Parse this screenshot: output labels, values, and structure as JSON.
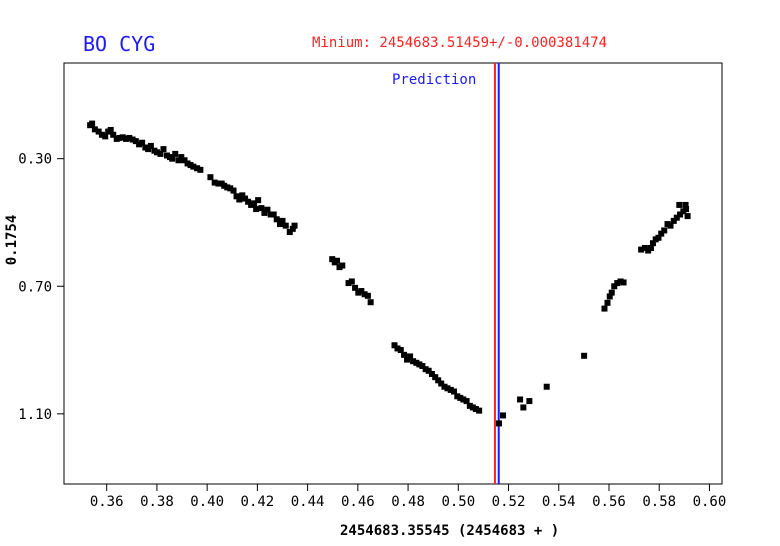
{
  "header": {
    "star_name": "BO CYG",
    "minimum_text": "Minium: 2454683.51459+/-0.000381474"
  },
  "colors": {
    "star_name": "#1a1aff",
    "minimum_line": "#ff2222",
    "prediction_line": "#1a1aff",
    "points": "#000000"
  },
  "chart_data": {
    "type": "scatter",
    "title": "",
    "xlabel": "2454683.35545 (2454683 + )",
    "ylabel": "0.1754",
    "xlim": [
      0.343,
      0.605
    ],
    "ylim": [
      1.32,
      0.0
    ],
    "y_inverted": true,
    "xticks": [
      0.36,
      0.38,
      0.4,
      0.42,
      0.44,
      0.46,
      0.48,
      0.5,
      0.52,
      0.54,
      0.56,
      0.58,
      0.6
    ],
    "xtick_labels": [
      "0.36",
      "0.38",
      "0.40",
      "0.42",
      "0.44",
      "0.46",
      "0.48",
      "0.50",
      "0.52",
      "0.54",
      "0.56",
      "0.58",
      "0.60"
    ],
    "yticks": [
      0.3,
      0.7,
      1.1
    ],
    "ytick_labels": [
      "0.30",
      "0.70",
      "1.10"
    ],
    "grid": false,
    "vlines": [
      {
        "x": 0.5146,
        "color": "#ff2222",
        "label": ""
      },
      {
        "x": 0.5161,
        "color": "#1a1aff",
        "label": "Prediction"
      }
    ],
    "points": [
      [
        0.3534,
        0.195
      ],
      [
        0.3542,
        0.19
      ],
      [
        0.3553,
        0.208
      ],
      [
        0.3568,
        0.215
      ],
      [
        0.3581,
        0.225
      ],
      [
        0.3594,
        0.23
      ],
      [
        0.3606,
        0.215
      ],
      [
        0.3616,
        0.21
      ],
      [
        0.3626,
        0.225
      ],
      [
        0.364,
        0.238
      ],
      [
        0.3651,
        0.235
      ],
      [
        0.3664,
        0.233
      ],
      [
        0.3677,
        0.238
      ],
      [
        0.369,
        0.235
      ],
      [
        0.3703,
        0.24
      ],
      [
        0.3716,
        0.245
      ],
      [
        0.3729,
        0.255
      ],
      [
        0.3741,
        0.25
      ],
      [
        0.3754,
        0.265
      ],
      [
        0.3765,
        0.27
      ],
      [
        0.3776,
        0.26
      ],
      [
        0.379,
        0.275
      ],
      [
        0.38,
        0.28
      ],
      [
        0.3814,
        0.285
      ],
      [
        0.3826,
        0.27
      ],
      [
        0.384,
        0.29
      ],
      [
        0.3852,
        0.295
      ],
      [
        0.3861,
        0.3
      ],
      [
        0.3873,
        0.285
      ],
      [
        0.3886,
        0.305
      ],
      [
        0.3897,
        0.295
      ],
      [
        0.391,
        0.305
      ],
      [
        0.3922,
        0.315
      ],
      [
        0.3934,
        0.32
      ],
      [
        0.3945,
        0.325
      ],
      [
        0.396,
        0.33
      ],
      [
        0.3973,
        0.335
      ],
      [
        0.4013,
        0.358
      ],
      [
        0.403,
        0.375
      ],
      [
        0.4045,
        0.378
      ],
      [
        0.4058,
        0.378
      ],
      [
        0.4068,
        0.385
      ],
      [
        0.408,
        0.39
      ],
      [
        0.4092,
        0.393
      ],
      [
        0.4105,
        0.4
      ],
      [
        0.4117,
        0.418
      ],
      [
        0.4128,
        0.428
      ],
      [
        0.414,
        0.415
      ],
      [
        0.4151,
        0.425
      ],
      [
        0.4163,
        0.435
      ],
      [
        0.4175,
        0.445
      ],
      [
        0.4187,
        0.44
      ],
      [
        0.4195,
        0.458
      ],
      [
        0.4203,
        0.43
      ],
      [
        0.4216,
        0.455
      ],
      [
        0.4228,
        0.47
      ],
      [
        0.424,
        0.46
      ],
      [
        0.4253,
        0.475
      ],
      [
        0.4265,
        0.475
      ],
      [
        0.4277,
        0.49
      ],
      [
        0.429,
        0.505
      ],
      [
        0.43,
        0.495
      ],
      [
        0.4313,
        0.51
      ],
      [
        0.4329,
        0.53
      ],
      [
        0.4341,
        0.52
      ],
      [
        0.4348,
        0.51
      ],
      [
        0.4498,
        0.615
      ],
      [
        0.4508,
        0.625
      ],
      [
        0.4517,
        0.62
      ],
      [
        0.4527,
        0.64
      ],
      [
        0.4538,
        0.635
      ],
      [
        0.4563,
        0.69
      ],
      [
        0.4576,
        0.685
      ],
      [
        0.4589,
        0.705
      ],
      [
        0.4602,
        0.72
      ],
      [
        0.4614,
        0.715
      ],
      [
        0.4627,
        0.725
      ],
      [
        0.464,
        0.73
      ],
      [
        0.4651,
        0.75
      ],
      [
        0.4746,
        0.885
      ],
      [
        0.4758,
        0.895
      ],
      [
        0.4771,
        0.9
      ],
      [
        0.4784,
        0.915
      ],
      [
        0.4796,
        0.93
      ],
      [
        0.4808,
        0.92
      ],
      [
        0.482,
        0.935
      ],
      [
        0.4833,
        0.94
      ],
      [
        0.4845,
        0.945
      ],
      [
        0.4857,
        0.95
      ],
      [
        0.487,
        0.96
      ],
      [
        0.4882,
        0.965
      ],
      [
        0.4895,
        0.975
      ],
      [
        0.4908,
        0.985
      ],
      [
        0.492,
        0.995
      ],
      [
        0.4932,
        1.005
      ],
      [
        0.4945,
        1.015
      ],
      [
        0.4957,
        1.02
      ],
      [
        0.497,
        1.025
      ],
      [
        0.4983,
        1.03
      ],
      [
        0.4996,
        1.045
      ],
      [
        0.5008,
        1.05
      ],
      [
        0.502,
        1.055
      ],
      [
        0.5033,
        1.06
      ],
      [
        0.5046,
        1.075
      ],
      [
        0.5058,
        1.08
      ],
      [
        0.507,
        1.085
      ],
      [
        0.5083,
        1.09
      ],
      [
        0.5162,
        1.13
      ],
      [
        0.5178,
        1.105
      ],
      [
        0.5246,
        1.055
      ],
      [
        0.5259,
        1.08
      ],
      [
        0.5283,
        1.06
      ],
      [
        0.5352,
        1.015
      ],
      [
        0.5501,
        0.918
      ],
      [
        0.5582,
        0.77
      ],
      [
        0.5594,
        0.752
      ],
      [
        0.5603,
        0.732
      ],
      [
        0.5611,
        0.72
      ],
      [
        0.5621,
        0.7
      ],
      [
        0.5633,
        0.69
      ],
      [
        0.5646,
        0.685
      ],
      [
        0.5658,
        0.688
      ],
      [
        0.5728,
        0.585
      ],
      [
        0.5743,
        0.58
      ],
      [
        0.5756,
        0.588
      ],
      [
        0.5767,
        0.58
      ],
      [
        0.5775,
        0.565
      ],
      [
        0.5786,
        0.553
      ],
      [
        0.5797,
        0.548
      ],
      [
        0.5808,
        0.535
      ],
      [
        0.582,
        0.525
      ],
      [
        0.5833,
        0.505
      ],
      [
        0.5845,
        0.51
      ],
      [
        0.5858,
        0.495
      ],
      [
        0.587,
        0.485
      ],
      [
        0.5883,
        0.475
      ],
      [
        0.5896,
        0.465
      ],
      [
        0.5907,
        0.458
      ],
      [
        0.5913,
        0.48
      ],
      [
        0.588,
        0.445
      ],
      [
        0.5905,
        0.445
      ]
    ]
  }
}
